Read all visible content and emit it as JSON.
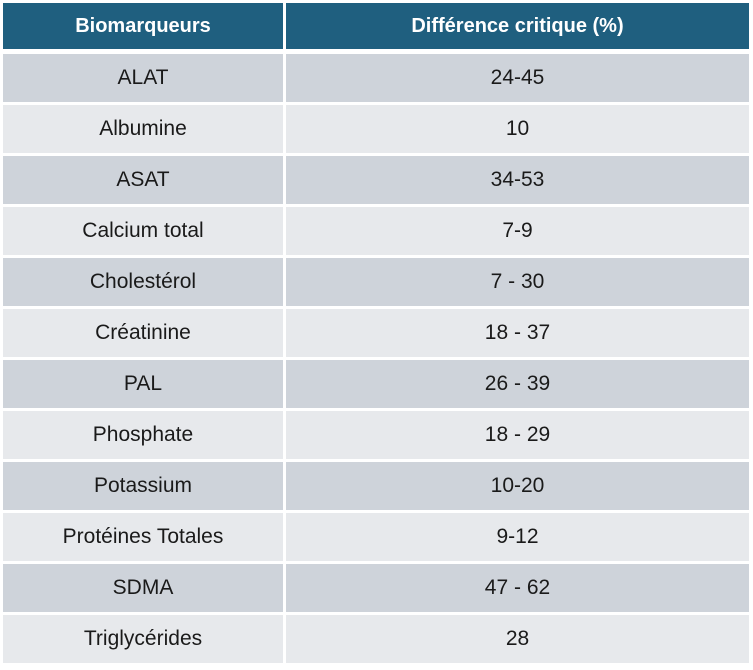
{
  "table": {
    "header_color": "#1f5f7f",
    "row_color_dark": "#ced3da",
    "row_color_light": "#e7e9ec",
    "columns": [
      "Biomarqueurs",
      "Différence critique (%)"
    ],
    "rows": [
      {
        "biomarker": "ALAT",
        "value": "24-45"
      },
      {
        "biomarker": "Albumine",
        "value": "10"
      },
      {
        "biomarker": "ASAT",
        "value": "34-53"
      },
      {
        "biomarker": "Calcium total",
        "value": "7-9"
      },
      {
        "biomarker": "Cholestérol",
        "value": "7 - 30"
      },
      {
        "biomarker": "Créatinine",
        "value": "18 - 37"
      },
      {
        "biomarker": "PAL",
        "value": "26 - 39"
      },
      {
        "biomarker": "Phosphate",
        "value": "18 - 29"
      },
      {
        "biomarker": "Potassium",
        "value": "10-20"
      },
      {
        "biomarker": "Protéines Totales",
        "value": "9-12"
      },
      {
        "biomarker": "SDMA",
        "value": "47 - 62"
      },
      {
        "biomarker": "Triglycérides",
        "value": "28"
      }
    ]
  }
}
